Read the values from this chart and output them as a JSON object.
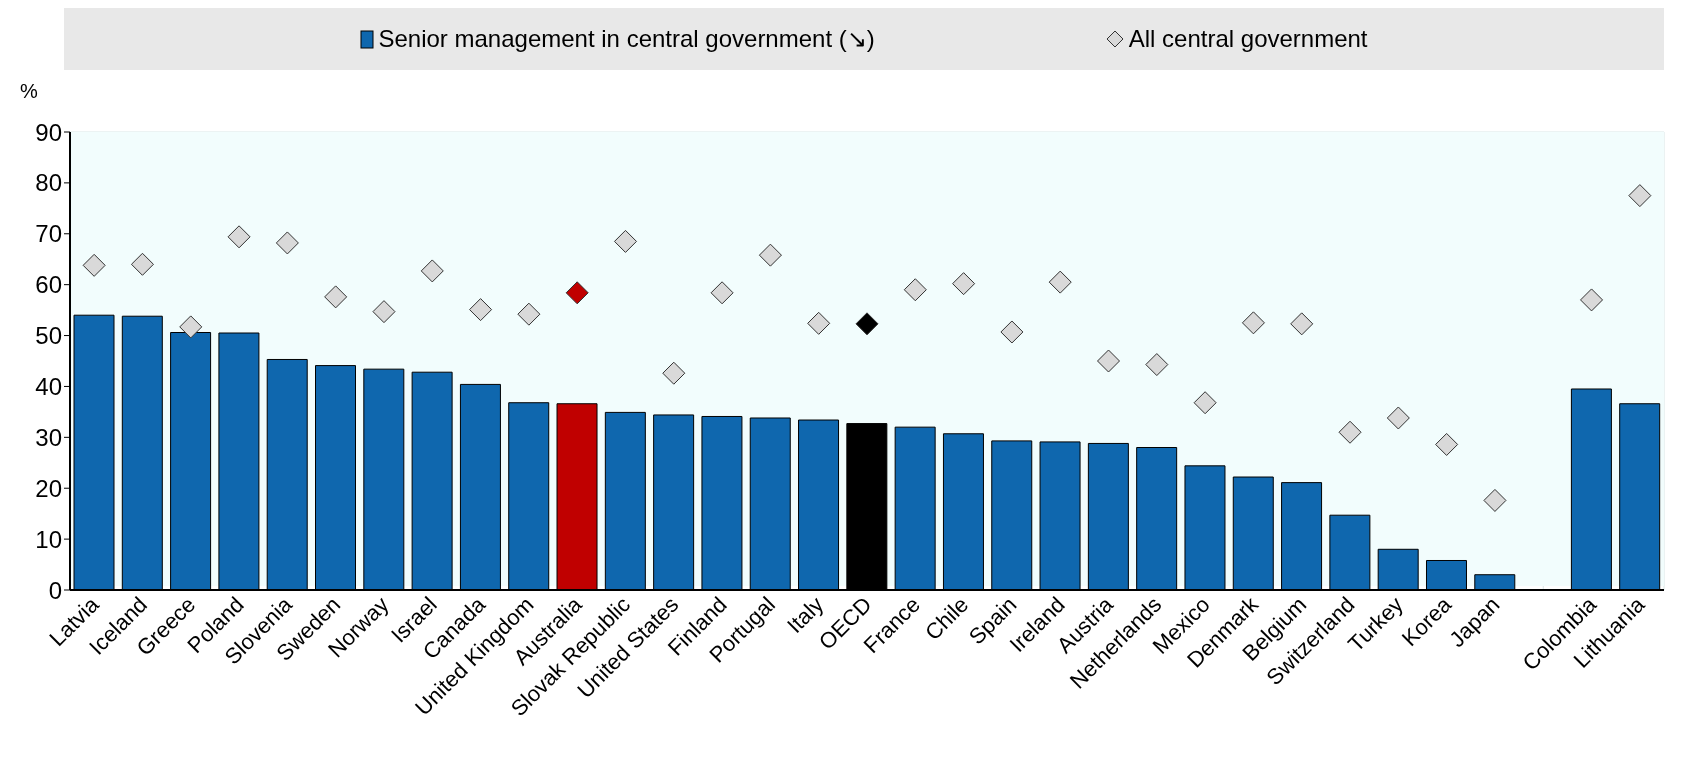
{
  "chart_data": {
    "type": "bar",
    "ylabel": "%",
    "categories": [
      "Latvia",
      "Iceland",
      "Greece",
      "Poland",
      "Slovenia",
      "Sweden",
      "Norway",
      "Israel",
      "Canada",
      "United Kingdom",
      "Australia",
      "Slovak Republic",
      "United States",
      "Finland",
      "Portugal",
      "Italy",
      "OECD",
      "France",
      "Chile",
      "Spain",
      "Ireland",
      "Austria",
      "Netherlands",
      "Mexico",
      "Denmark",
      "Belgium",
      "Switzerland",
      "Turkey",
      "Korea",
      "Japan",
      null,
      "Colombia",
      "Lithuania"
    ],
    "series": [
      {
        "name": "Senior management in central government (↘)",
        "color": "#0f67ae",
        "colors": [
          "#0f67ae",
          "#0f67ae",
          "#0f67ae",
          "#0f67ae",
          "#0f67ae",
          "#0f67ae",
          "#0f67ae",
          "#0f67ae",
          "#0f67ae",
          "#0f67ae",
          "#c00000",
          "#0f67ae",
          "#0f67ae",
          "#0f67ae",
          "#0f67ae",
          "#0f67ae",
          "#000000",
          "#0f67ae",
          "#0f67ae",
          "#0f67ae",
          "#0f67ae",
          "#0f67ae",
          "#0f67ae",
          "#0f67ae",
          "#0f67ae",
          "#0f67ae",
          "#0f67ae",
          "#0f67ae",
          "#0f67ae",
          "#0f67ae",
          null,
          "#0f67ae",
          "#0f67ae"
        ],
        "values": [
          54,
          53.8,
          50.6,
          50.5,
          45.3,
          44.1,
          43.4,
          42.8,
          40.4,
          36.8,
          36.6,
          34.9,
          34.4,
          34.1,
          33.8,
          33.4,
          32.7,
          32,
          30.7,
          29.3,
          29.1,
          28.8,
          28,
          24.4,
          22.2,
          21.1,
          14.7,
          8,
          5.8,
          3,
          null,
          39.5,
          36.6
        ]
      },
      {
        "name": "All central government",
        "type": "scatter",
        "marker": "diamond",
        "color": "#d9d9d9",
        "colors": [
          "#d9d9d9",
          "#d9d9d9",
          "#d9d9d9",
          "#d9d9d9",
          "#d9d9d9",
          "#d9d9d9",
          "#d9d9d9",
          "#d9d9d9",
          "#d9d9d9",
          "#d9d9d9",
          "#c00000",
          "#d9d9d9",
          "#d9d9d9",
          "#d9d9d9",
          "#d9d9d9",
          "#d9d9d9",
          "#000000",
          "#d9d9d9",
          "#d9d9d9",
          "#d9d9d9",
          "#d9d9d9",
          "#d9d9d9",
          "#d9d9d9",
          "#d9d9d9",
          "#d9d9d9",
          "#d9d9d9",
          "#d9d9d9",
          "#d9d9d9",
          "#d9d9d9",
          "#d9d9d9",
          null,
          "#d9d9d9",
          "#d9d9d9"
        ],
        "values": [
          63.8,
          64,
          51.7,
          69.4,
          68.2,
          57.6,
          54.7,
          62.7,
          55.1,
          54.2,
          58.4,
          68.5,
          42.6,
          58.4,
          65.8,
          52.4,
          52.3,
          59,
          60.2,
          50.7,
          60.5,
          45,
          44.3,
          36.8,
          52.5,
          52.3,
          31,
          33.8,
          28.6,
          17.6,
          null,
          57,
          77.5
        ]
      }
    ],
    "ylim": [
      0,
      90
    ],
    "yticks": [
      0,
      10,
      20,
      30,
      40,
      50,
      60,
      70,
      80,
      90
    ],
    "grid": true,
    "legend": "top"
  }
}
